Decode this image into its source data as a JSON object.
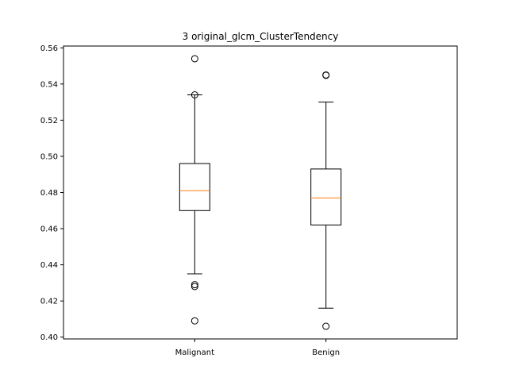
{
  "chart_data": {
    "type": "box",
    "title": "3 original_glcm_ClusterTendency",
    "xlabel": "",
    "ylabel": "",
    "ylim": [
      0.399,
      0.561
    ],
    "yticks": [
      0.4,
      0.42,
      0.44,
      0.46,
      0.48,
      0.5,
      0.52,
      0.54,
      0.56
    ],
    "ytick_labels": [
      "0.40",
      "0.42",
      "0.44",
      "0.46",
      "0.48",
      "0.50",
      "0.52",
      "0.54",
      "0.56"
    ],
    "grid": false,
    "categories": [
      "Malignant",
      "Benign"
    ],
    "boxes": [
      {
        "category": "Malignant",
        "whisker_low": 0.435,
        "q1": 0.47,
        "median": 0.481,
        "q3": 0.496,
        "whisker_high": 0.534,
        "outliers": [
          0.554,
          0.534,
          0.429,
          0.428,
          0.409
        ]
      },
      {
        "category": "Benign",
        "whisker_low": 0.416,
        "q1": 0.462,
        "median": 0.477,
        "q3": 0.493,
        "whisker_high": 0.53,
        "outliers": [
          0.545,
          0.5448,
          0.406
        ]
      }
    ],
    "colors": {
      "box": "#000000",
      "median": "#ff7f0e",
      "axes": "#000000"
    }
  }
}
